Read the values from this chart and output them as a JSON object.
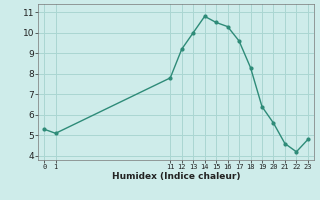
{
  "x": [
    0,
    1,
    11,
    12,
    13,
    14,
    15,
    16,
    17,
    18,
    19,
    20,
    21,
    22,
    23
  ],
  "y": [
    5.3,
    5.1,
    7.8,
    9.2,
    10.0,
    10.8,
    10.5,
    10.3,
    9.6,
    8.3,
    6.4,
    5.6,
    4.6,
    4.2,
    4.8
  ],
  "xlabel": "Humidex (Indice chaleur)",
  "ylim": [
    3.8,
    11.4
  ],
  "xlim": [
    -0.5,
    23.5
  ],
  "yticks": [
    4,
    5,
    6,
    7,
    8,
    9,
    10,
    11
  ],
  "xticks": [
    0,
    1,
    11,
    12,
    13,
    14,
    15,
    16,
    17,
    18,
    19,
    20,
    21,
    22,
    23
  ],
  "line_color": "#2e8b78",
  "marker_color": "#2e8b78",
  "bg_color": "#ceecea",
  "grid_color": "#aad6d2",
  "font_color": "#222222"
}
